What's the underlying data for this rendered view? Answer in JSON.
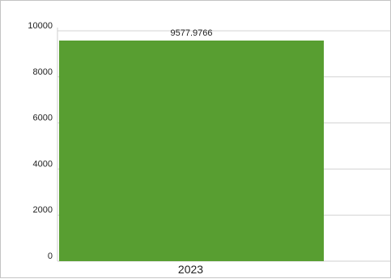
{
  "chart_data": {
    "type": "bar",
    "categories": [
      "2023"
    ],
    "values": [
      9577.9766
    ],
    "data_labels": [
      "9577.9766"
    ],
    "ylim": [
      0,
      10000
    ],
    "yticks": [
      0,
      2000,
      4000,
      6000,
      8000,
      10000
    ],
    "grid": true,
    "colors": {
      "bar": "#589e31",
      "grid": "#d3d3d3",
      "axis": "#cfcfcf"
    }
  }
}
